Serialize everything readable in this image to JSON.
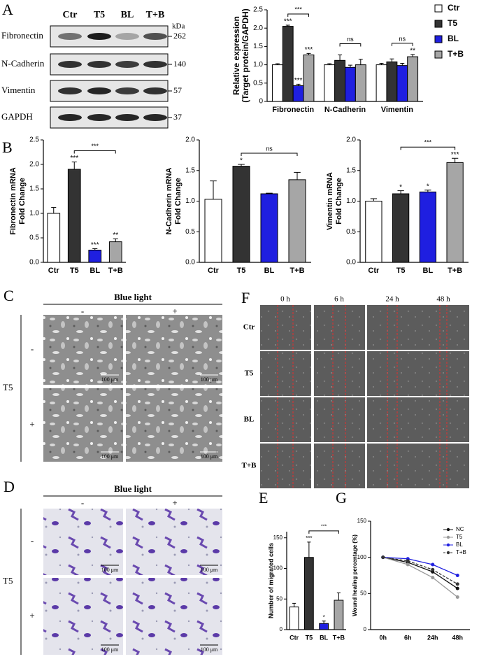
{
  "figure": {
    "panel_letters": [
      "A",
      "B",
      "C",
      "D",
      "E",
      "F",
      "G"
    ],
    "blot": {
      "lanes": [
        "Ctr",
        "T5",
        "BL",
        "T+B"
      ],
      "unit": "kDa",
      "proteins": [
        {
          "name": "Fibronectin",
          "kda": 262
        },
        {
          "name": "N-Cadherin",
          "kda": 140
        },
        {
          "name": "Vimentin",
          "kda": 57
        },
        {
          "name": "GAPDH",
          "kda": 37
        }
      ]
    },
    "panel_c": {
      "header": "Blue light",
      "columns": [
        "-",
        "+"
      ],
      "group": "T5",
      "rows": [
        "-",
        "+"
      ],
      "scale_bar": "100 μm"
    },
    "panel_d": {
      "header": "Blue light",
      "columns": [
        "-",
        "+"
      ],
      "group": "T5",
      "rows": [
        "-",
        "+"
      ],
      "scale_bar": "100 μm"
    },
    "panel_f": {
      "columns": [
        "0 h",
        "6 h",
        "24 h",
        "48 h"
      ],
      "rows": [
        "Ctr",
        "T5",
        "BL",
        "T+B"
      ]
    }
  },
  "chart_data": [
    {
      "type": "bar",
      "ylabel": [
        "Relative expression",
        "(Target protein/GAPDH)"
      ],
      "categories": [
        "Fibronectin",
        "N-Cadherin",
        "Vimentin"
      ],
      "series": [
        {
          "name": "Ctr",
          "color": "#ffffff",
          "values": [
            1.0,
            1.0,
            1.0
          ],
          "errors": [
            0.03,
            0.03,
            0.04
          ]
        },
        {
          "name": "T5",
          "color": "#333333",
          "values": [
            2.05,
            1.12,
            1.08
          ],
          "errors": [
            0.03,
            0.15,
            0.08
          ]
        },
        {
          "name": "BL",
          "color": "#1f1fe0",
          "values": [
            0.43,
            0.93,
            0.98
          ],
          "errors": [
            0.04,
            0.06,
            0.06
          ]
        },
        {
          "name": "T+B",
          "color": "#a6a6a6",
          "values": [
            1.27,
            1.0,
            1.22
          ],
          "errors": [
            0.04,
            0.15,
            0.06
          ]
        }
      ],
      "ylim": [
        0,
        2.5
      ],
      "yticks": [
        0,
        0.5,
        {
          "value": 1,
          "label": "1.0"
        },
        1.5,
        {
          "value": 2,
          "label": "2.0"
        },
        2.5
      ],
      "legend": "right",
      "annotations": [
        {
          "text": "***",
          "category": 0,
          "series": 1
        },
        {
          "text": "***",
          "category": 0,
          "series": 2
        },
        {
          "text": "***",
          "category": 0,
          "series": 3
        },
        {
          "text": "**",
          "category": 2,
          "series": 3
        }
      ],
      "brackets": [
        {
          "text": "***",
          "category": 0,
          "from": 1,
          "to": 3
        },
        {
          "text": "ns",
          "category": 1,
          "from": 1,
          "to": 3
        },
        {
          "text": "ns",
          "category": 2,
          "from": 1,
          "to": 3
        }
      ]
    },
    {
      "type": "bar",
      "ylabel": [
        "Fibronectin mRNA",
        "Fold Change"
      ],
      "categories": [
        "Ctr",
        "T5",
        "BL",
        "T+B"
      ],
      "values": [
        1.0,
        1.9,
        0.25,
        0.42
      ],
      "errors": [
        0.12,
        0.15,
        0.03,
        0.06
      ],
      "colors": [
        "#ffffff",
        "#333333",
        "#1f1fe0",
        "#a6a6a6"
      ],
      "ylim": [
        0,
        2.5
      ],
      "yticks": [
        {
          "value": 0,
          "label": "0.0"
        },
        0.5,
        {
          "value": 1,
          "label": "1.0"
        },
        1.5,
        {
          "value": 2,
          "label": "2.0"
        },
        2.5
      ],
      "annotations": [
        {
          "text": "***",
          "category": 1
        },
        {
          "text": "***",
          "category": 2
        },
        {
          "text": "**",
          "category": 3
        }
      ],
      "brackets": [
        {
          "text": "***",
          "from": 1,
          "to": 3
        }
      ]
    },
    {
      "type": "bar",
      "ylabel": [
        "N-Cadherin mRNA",
        "Fold Change"
      ],
      "categories": [
        "Ctr",
        "T5",
        "BL",
        "T+B"
      ],
      "values": [
        1.03,
        1.57,
        1.12,
        1.35
      ],
      "errors": [
        0.3,
        0.03,
        0.01,
        0.12
      ],
      "colors": [
        "#ffffff",
        "#333333",
        "#1f1fe0",
        "#a6a6a6"
      ],
      "ylim": [
        0,
        2
      ],
      "yticks": [
        {
          "value": 0,
          "label": "0.0"
        },
        0.5,
        {
          "value": 1,
          "label": "1.0"
        },
        1.5,
        {
          "value": 2,
          "label": "2.0"
        }
      ],
      "annotations": [
        {
          "text": "*",
          "category": 1
        }
      ],
      "brackets": [
        {
          "text": "ns",
          "from": 1,
          "to": 3
        }
      ]
    },
    {
      "type": "bar",
      "ylabel": [
        "Vimentin mRNA",
        "Fold Change"
      ],
      "categories": [
        "Ctr",
        "T5",
        "BL",
        "T+B"
      ],
      "values": [
        1.0,
        1.12,
        1.15,
        1.63
      ],
      "errors": [
        0.04,
        0.05,
        0.03,
        0.07
      ],
      "colors": [
        "#ffffff",
        "#333333",
        "#1f1fe0",
        "#a6a6a6"
      ],
      "ylim": [
        0,
        2
      ],
      "yticks": [
        {
          "value": 0,
          "label": "0.0"
        },
        0.5,
        {
          "value": 1,
          "label": "1.0"
        },
        1.5,
        {
          "value": 2,
          "label": "2.0"
        }
      ],
      "annotations": [
        {
          "text": "*",
          "category": 1
        },
        {
          "text": "*",
          "category": 2
        },
        {
          "text": "***",
          "category": 3
        }
      ],
      "brackets": [
        {
          "text": "***",
          "from": 1,
          "to": 3
        }
      ]
    },
    {
      "type": "bar",
      "ylabel": [
        "Number of migrated cells"
      ],
      "categories": [
        "Ctr",
        "T5",
        "BL",
        "T+B"
      ],
      "values": [
        37,
        118,
        10,
        48
      ],
      "errors": [
        6,
        25,
        4,
        12
      ],
      "colors": [
        "#ffffff",
        "#333333",
        "#1f1fe0",
        "#a6a6a6"
      ],
      "ylim": [
        0,
        160
      ],
      "yticks": [
        0,
        50,
        100,
        150
      ],
      "annotations": [
        {
          "text": "***",
          "category": 1
        },
        {
          "text": "*",
          "category": 2
        }
      ],
      "brackets": [
        {
          "text": "***",
          "from": 1,
          "to": 3
        }
      ]
    },
    {
      "type": "line",
      "ylabel": [
        "Wound healing percentage (%)"
      ],
      "categories": [
        "0h",
        "6h",
        "24h",
        "48h"
      ],
      "series": [
        {
          "name": "NC",
          "color": "#111111",
          "values": [
            100,
            93,
            80,
            57
          ]
        },
        {
          "name": "T5",
          "color": "#9a9a9a",
          "values": [
            100,
            90,
            72,
            45
          ]
        },
        {
          "name": "BL",
          "color": "#2020e0",
          "values": [
            100,
            98,
            90,
            75
          ]
        },
        {
          "name": "T+B",
          "color": "#333333",
          "dashed": true,
          "values": [
            100,
            95,
            83,
            63
          ]
        }
      ],
      "ylim": [
        0,
        150
      ],
      "yticks": [
        0,
        50,
        100,
        150
      ],
      "legend": "upper right"
    }
  ]
}
